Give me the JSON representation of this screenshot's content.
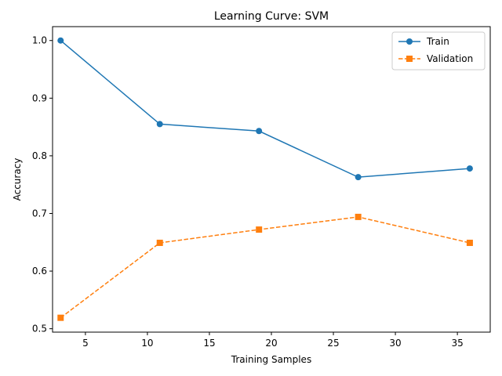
{
  "chart_data": {
    "type": "line",
    "title": "Learning Curve: SVM",
    "xlabel": "Training Samples",
    "ylabel": "Accuracy",
    "xlim": [
      2.35,
      37.65
    ],
    "ylim": [
      0.4941,
      1.0241
    ],
    "xticks": [
      5,
      10,
      15,
      20,
      25,
      30,
      35
    ],
    "yticks": [
      0.5,
      0.6,
      0.7,
      0.8,
      0.9,
      1.0
    ],
    "x": [
      3,
      11,
      19,
      27,
      36
    ],
    "grid": false,
    "legend_position": "top-right",
    "series": [
      {
        "name": "Train",
        "values": [
          1.0,
          0.855,
          0.843,
          0.763,
          0.778
        ],
        "color": "#1f77b4",
        "marker": "circle",
        "linestyle": "solid"
      },
      {
        "name": "Validation",
        "values": [
          0.519,
          0.649,
          0.672,
          0.694,
          0.649
        ],
        "color": "#ff7f0e",
        "marker": "square",
        "linestyle": "dashed"
      }
    ]
  }
}
